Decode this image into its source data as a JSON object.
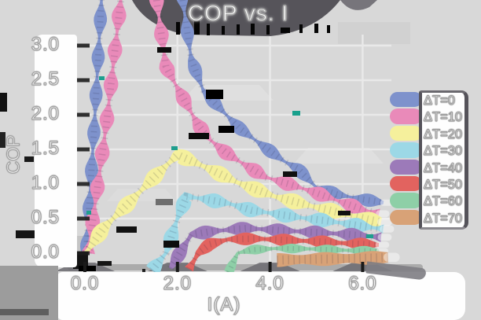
{
  "title": "COP vs. I",
  "axes": {
    "x": {
      "label": "I(A)",
      "ticks": [
        "0.0",
        "2.0",
        "4.0",
        "6.0"
      ],
      "tick_values": [
        0,
        2,
        4,
        6
      ],
      "range": [
        0,
        6.6
      ]
    },
    "y": {
      "label": "COP",
      "ticks": [
        "0.0",
        "0.5",
        "1.0",
        "1.5",
        "2.0",
        "2.5",
        "3.0"
      ],
      "tick_values": [
        0,
        0.5,
        1,
        1.5,
        2,
        2.5,
        3
      ],
      "range": [
        0,
        3
      ]
    }
  },
  "legend": {
    "entries": [
      {
        "label": "ΔT=0",
        "color": "#7e92cc"
      },
      {
        "label": "ΔT=10",
        "color": "#e98ab9"
      },
      {
        "label": "ΔT=20",
        "color": "#f5f09c"
      },
      {
        "label": "ΔT=30",
        "color": "#9cd8e6"
      },
      {
        "label": "ΔT=40",
        "color": "#9c7ab9"
      },
      {
        "label": "ΔT=50",
        "color": "#e2635f"
      },
      {
        "label": "ΔT=60",
        "color": "#8ecfa7"
      },
      {
        "label": "ΔT=70",
        "color": "#d8a277"
      }
    ]
  },
  "colors": {
    "background": "#d8d8d8",
    "label_band": "#fefefe",
    "title_band": "#56545a",
    "gridline": "#e9e9e9",
    "text_fill": "#ffffff",
    "text_outline": "#a2a2a2"
  },
  "chart_data": {
    "type": "line",
    "title": "COP vs. I",
    "xlabel": "I(A)",
    "ylabel": "COP",
    "xlim": [
      0,
      6.6
    ],
    "ylim": [
      0,
      3.0
    ],
    "grid": true,
    "legend_position": "right",
    "series": [
      {
        "name": "ΔT=0",
        "delta_t": 0,
        "color": "#7e92cc",
        "points": [
          [
            0.03,
            0.0
          ],
          [
            0.2,
            1.8
          ],
          [
            0.37,
            3.8
          ],
          [
            2.08,
            3.8
          ],
          [
            2.3,
            2.8
          ],
          [
            2.56,
            2.35
          ],
          [
            2.95,
            2.07
          ],
          [
            3.35,
            1.8
          ],
          [
            3.85,
            1.55
          ],
          [
            4.3,
            1.33
          ],
          [
            4.6,
            1.22
          ],
          [
            5.0,
            0.95
          ],
          [
            5.45,
            0.85
          ],
          [
            5.9,
            0.79
          ],
          [
            6.45,
            0.73
          ]
        ]
      },
      {
        "name": "ΔT=10",
        "delta_t": 10,
        "color": "#e98ab9",
        "points": [
          [
            0.07,
            0.0
          ],
          [
            0.46,
            1.84
          ],
          [
            0.8,
            3.8
          ],
          [
            1.52,
            3.8
          ],
          [
            1.75,
            2.7
          ],
          [
            1.95,
            2.45
          ],
          [
            2.2,
            2.15
          ],
          [
            2.45,
            1.85
          ],
          [
            2.72,
            1.63
          ],
          [
            3.05,
            1.45
          ],
          [
            3.4,
            1.3
          ],
          [
            3.9,
            1.1
          ],
          [
            4.5,
            0.98
          ],
          [
            5.0,
            0.87
          ],
          [
            5.5,
            0.75
          ],
          [
            6.0,
            0.63
          ],
          [
            6.35,
            0.57
          ]
        ]
      },
      {
        "name": "ΔT=20",
        "delta_t": 20,
        "color": "#f5f09c",
        "points": [
          [
            0.02,
            0.0
          ],
          [
            0.4,
            0.36
          ],
          [
            1.0,
            0.76
          ],
          [
            1.5,
            1.1
          ],
          [
            2.0,
            1.42
          ],
          [
            2.35,
            1.32
          ],
          [
            2.75,
            1.2
          ],
          [
            3.3,
            1.02
          ],
          [
            4.1,
            0.82
          ],
          [
            4.9,
            0.68
          ],
          [
            5.6,
            0.57
          ],
          [
            6.1,
            0.49
          ],
          [
            6.4,
            0.45
          ]
        ]
      },
      {
        "name": "ΔT=30",
        "delta_t": 30,
        "color": "#9cd8e6",
        "points": [
          [
            1.45,
            -0.25
          ],
          [
            1.75,
            0.0
          ],
          [
            2.0,
            0.5
          ],
          [
            2.2,
            0.82
          ],
          [
            2.6,
            0.78
          ],
          [
            3.1,
            0.72
          ],
          [
            3.6,
            0.62
          ],
          [
            4.1,
            0.57
          ],
          [
            4.7,
            0.51
          ],
          [
            5.2,
            0.47
          ],
          [
            5.7,
            0.42
          ],
          [
            6.2,
            0.37
          ],
          [
            6.45,
            0.35
          ]
        ]
      },
      {
        "name": "ΔT=40",
        "delta_t": 40,
        "color": "#9c7ab9",
        "points": [
          [
            1.85,
            -0.22
          ],
          [
            2.05,
            0.0
          ],
          [
            2.3,
            0.27
          ],
          [
            2.8,
            0.32
          ],
          [
            3.5,
            0.36
          ],
          [
            4.2,
            0.33
          ],
          [
            5.0,
            0.3
          ],
          [
            5.7,
            0.27
          ],
          [
            6.4,
            0.23
          ]
        ]
      },
      {
        "name": "ΔT=50",
        "delta_t": 50,
        "color": "#e2635f",
        "points": [
          [
            2.25,
            -0.23
          ],
          [
            2.45,
            0.0
          ],
          [
            2.7,
            0.13
          ],
          [
            3.1,
            0.2
          ],
          [
            3.7,
            0.21
          ],
          [
            4.3,
            0.19
          ],
          [
            5.0,
            0.17
          ],
          [
            5.7,
            0.14
          ],
          [
            6.35,
            0.12
          ]
        ]
      },
      {
        "name": "ΔT=60",
        "delta_t": 60,
        "color": "#8ecfa7",
        "points": [
          [
            3.1,
            -0.28
          ],
          [
            3.3,
            0.0
          ],
          [
            3.6,
            0.05
          ],
          [
            4.2,
            0.07
          ],
          [
            5.0,
            0.06
          ],
          [
            5.7,
            0.04
          ],
          [
            6.35,
            0.03
          ]
        ]
      },
      {
        "name": "ΔT=70",
        "delta_t": 70,
        "color": "#d8a277",
        "points": [
          [
            4.15,
            -0.1
          ],
          [
            4.8,
            -0.09
          ],
          [
            5.5,
            -0.08
          ],
          [
            6.2,
            -0.07
          ],
          [
            6.55,
            -0.06
          ]
        ]
      }
    ]
  }
}
